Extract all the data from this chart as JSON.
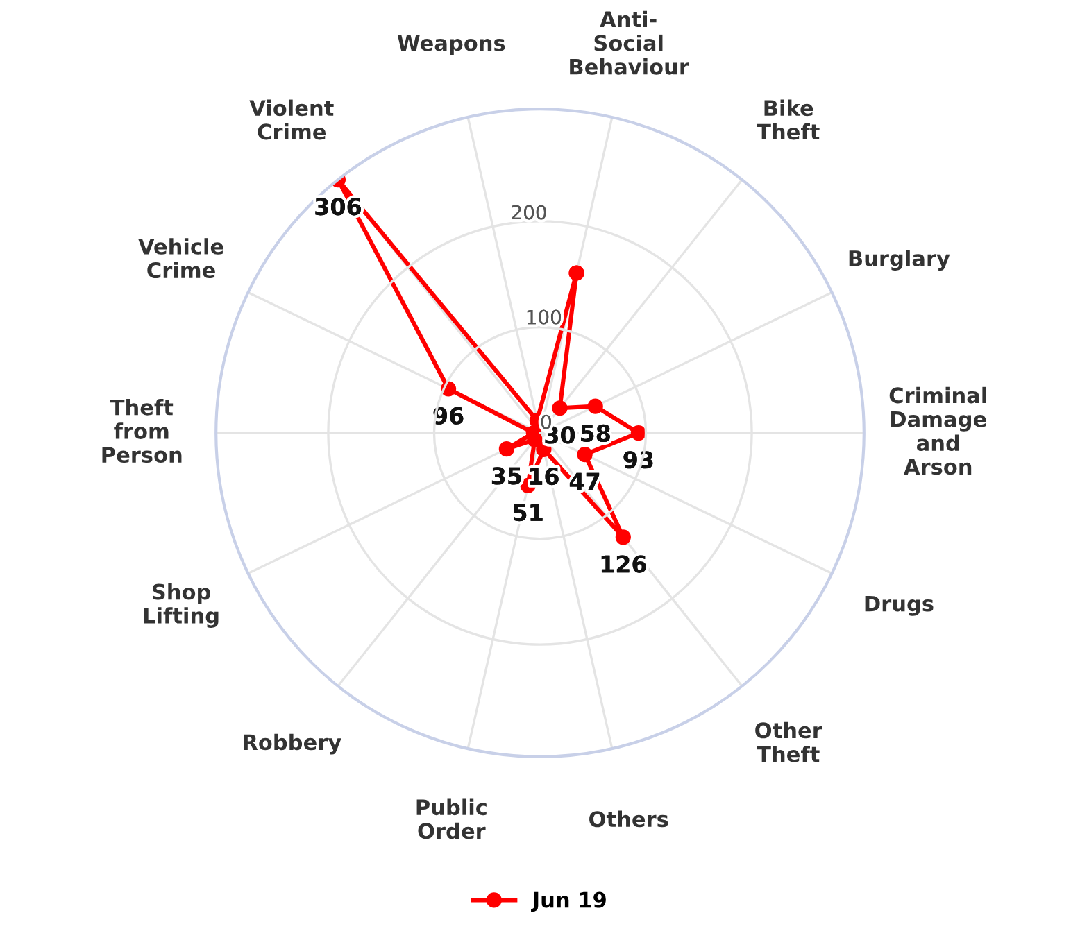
{
  "chart_data": {
    "type": "radar",
    "categories": [
      "Anti-\nSocial\nBehaviour",
      "Bike\nTheft",
      "Burglary",
      "Criminal\nDamage\nand\nArson",
      "Drugs",
      "Other\nTheft",
      "Others",
      "Public\nOrder",
      "Robbery",
      "Shop\nLifting",
      "Theft\nfrom\nPerson",
      "Vehicle\nCrime",
      "Violent\nCrime",
      "Weapons"
    ],
    "series": [
      {
        "name": "Jun 19",
        "color": "#ff0000",
        "values": [
          155,
          30,
          58,
          93,
          47,
          126,
          16,
          51,
          8,
          35,
          6,
          96,
          306,
          12
        ],
        "value_labels": [
          null,
          "30",
          "58",
          "93",
          "47",
          "126",
          "16",
          "51",
          null,
          "35",
          null,
          "96",
          "306",
          null
        ]
      }
    ],
    "ylim": [
      0,
      306
    ],
    "yticks": [
      0,
      100,
      200
    ],
    "grid": true,
    "legend": "bottom",
    "marker": "circle",
    "line_style": "solid"
  }
}
